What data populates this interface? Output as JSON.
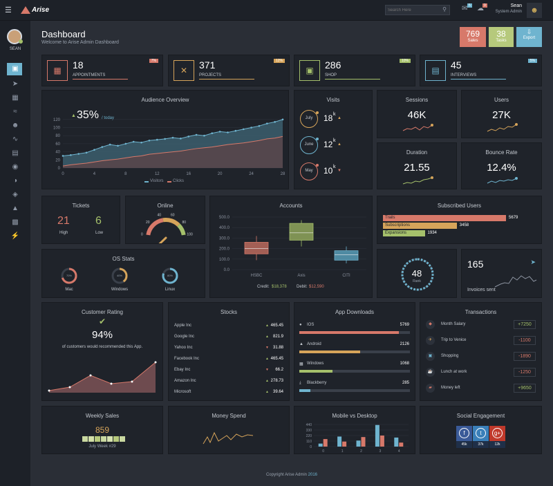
{
  "app": {
    "name": "Arise"
  },
  "topbar": {
    "search_placeholder": "Search Here",
    "msg_count": "5",
    "alert_count": "9",
    "user_name": "Sean",
    "user_role": "System Admin"
  },
  "sidebar": {
    "user_label": "SEAN"
  },
  "header": {
    "title": "Dashboard",
    "subtitle": "Welcome to Arise Admin Dashboard",
    "sales_value": "769",
    "sales_label": "Sales",
    "tasks_value": "38",
    "tasks_label": "Tasks",
    "export_label": "Export"
  },
  "stats": [
    {
      "value": "18",
      "label": "APPOINTMENTS",
      "badge": "7%",
      "color": "#d7796a"
    },
    {
      "value": "371",
      "label": "PROJECTS",
      "badge": "12%",
      "color": "#d6a45a"
    },
    {
      "value": "286",
      "label": "SHOP",
      "badge": "10%",
      "color": "#a5c06b"
    },
    {
      "value": "45",
      "label": "INTERVIEWS",
      "badge": "5%",
      "color": "#6fb4cf"
    }
  ],
  "audience": {
    "title": "Audience Overview",
    "percent": "35%",
    "period": "/ today",
    "legend1": "Visitors",
    "legend2": "Clicks",
    "chart_data": {
      "type": "area",
      "x": [
        0,
        1,
        2,
        3,
        4,
        5,
        6,
        7,
        8,
        9,
        10,
        11,
        12,
        13,
        14,
        15,
        16,
        17,
        18,
        19,
        20,
        21,
        22,
        23,
        24,
        25,
        26,
        27,
        28
      ],
      "xticks": [
        "0",
        "4",
        "8",
        "12",
        "16",
        "20",
        "24",
        "28"
      ],
      "yticks": [
        "0",
        "20",
        "40",
        "60",
        "80",
        "100",
        "120"
      ],
      "ylim": [
        0,
        130
      ],
      "series": [
        {
          "name": "Visitors",
          "values": [
            30,
            32,
            35,
            38,
            45,
            52,
            58,
            55,
            60,
            65,
            63,
            68,
            70,
            72,
            75,
            73,
            78,
            82,
            80,
            86,
            90,
            88,
            92,
            96,
            100,
            104,
            110,
            114,
            120
          ]
        },
        {
          "name": "Clicks",
          "values": [
            5,
            8,
            10,
            12,
            15,
            18,
            20,
            22,
            25,
            28,
            30,
            34,
            36,
            38,
            40,
            42,
            45,
            48,
            50,
            52,
            55,
            58,
            60,
            62,
            65,
            68,
            72,
            74,
            78
          ]
        }
      ]
    }
  },
  "visits": {
    "title": "Visits",
    "rows": [
      {
        "month": "July",
        "value": "18",
        "unit": "k",
        "trend": "up"
      },
      {
        "month": "June",
        "value": "12",
        "unit": "k",
        "trend": "up"
      },
      {
        "month": "May",
        "value": "10",
        "unit": "k",
        "trend": "down"
      }
    ]
  },
  "sessions": {
    "title": "Sessions",
    "value": "46K"
  },
  "users": {
    "title": "Users",
    "value": "27K"
  },
  "duration": {
    "title": "Duration",
    "value": "21.55"
  },
  "bounce": {
    "title": "Bounce Rate",
    "value": "12.4%"
  },
  "tickets": {
    "title": "Tickets",
    "high_value": "21",
    "high_label": "High",
    "low_value": "6",
    "low_label": "Low"
  },
  "online": {
    "title": "Online",
    "ticks": [
      "0",
      "20",
      "40",
      "60",
      "80",
      "100"
    ]
  },
  "accounts": {
    "title": "Accounts",
    "credit_label": "Credit:",
    "credit_value": "$18,378",
    "debit_label": "Debit:",
    "debit_value": "$12,590",
    "chart_data": {
      "type": "boxplot",
      "categories": [
        "HSBC",
        "Axis",
        "CITI"
      ],
      "yticks": [
        "0.0",
        "100.0",
        "200.0",
        "300.0",
        "400.0",
        "500.0"
      ],
      "ylim": [
        0,
        500
      ],
      "boxes": [
        {
          "min": 90,
          "q1": 150,
          "median": 200,
          "q3": 260,
          "max": 320
        },
        {
          "min": 220,
          "q1": 280,
          "median": 350,
          "q3": 440,
          "max": 470
        },
        {
          "min": 60,
          "q1": 90,
          "median": 140,
          "q3": 180,
          "max": 220
        }
      ]
    }
  },
  "subscribed": {
    "title": "Subscribed Users",
    "rows": [
      {
        "label": "Trails",
        "value": "5679",
        "pct": 1.0,
        "color": "#d7796a"
      },
      {
        "label": "Subscriptions",
        "value": "3458",
        "pct": 0.6,
        "color": "#d6a45a"
      },
      {
        "label": "Expansions",
        "value": "1934",
        "pct": 0.34,
        "color": "#a5c06b"
      }
    ]
  },
  "os": {
    "title": "OS Stats",
    "items": [
      {
        "label": "Mac",
        "pct": "70%",
        "color": "#d7796a",
        "value": 0.7
      },
      {
        "label": "Windows",
        "pct": "40%",
        "color": "#d6a45a",
        "value": 0.4
      },
      {
        "label": "Linux",
        "pct": "80%",
        "color": "#6fb4cf",
        "value": 0.8
      }
    ]
  },
  "rank": {
    "value": "48",
    "label": "Rank"
  },
  "invoices": {
    "value": "165",
    "label": "Invoices sent"
  },
  "rating": {
    "title": "Customer Rating",
    "percent": "94%",
    "text": "of customers would recommended this App."
  },
  "stocks": {
    "title": "Stocks",
    "rows": [
      {
        "name": "Apple Inc",
        "value": "465.45",
        "trend": "up"
      },
      {
        "name": "Google Inc",
        "value": "821.9",
        "trend": "up"
      },
      {
        "name": "Yahoo Inc",
        "value": "31.88",
        "trend": "down"
      },
      {
        "name": "Facebook Inc",
        "value": "465.45",
        "trend": "up"
      },
      {
        "name": "Ebay Inc",
        "value": "66.2",
        "trend": "down"
      },
      {
        "name": "Amazon Inc",
        "value": "278.73",
        "trend": "up"
      },
      {
        "name": "Microsoft",
        "value": "39.64",
        "trend": "up"
      }
    ]
  },
  "downloads": {
    "title": "App Downloads",
    "rows": [
      {
        "name": "IOS",
        "value": "5769",
        "pct": 0.9,
        "color": "#d7796a",
        "icon": "apple-icon"
      },
      {
        "name": "Android",
        "value": "2126",
        "pct": 0.55,
        "color": "#d6a45a",
        "icon": "android-icon"
      },
      {
        "name": "Windows",
        "value": "1068",
        "pct": 0.3,
        "color": "#a5c06b",
        "icon": "windows-icon"
      },
      {
        "name": "Blackberry",
        "value": "285",
        "pct": 0.1,
        "color": "#6fb4cf",
        "icon": "blackberry-icon"
      }
    ]
  },
  "transactions": {
    "title": "Transactions",
    "rows": [
      {
        "label": "Month Salary",
        "value": "+7250",
        "type": "pos",
        "color": "#d7796a"
      },
      {
        "label": "Trip to Venice",
        "value": "-1100",
        "type": "neg",
        "color": "#d6a45a"
      },
      {
        "label": "Shopping",
        "value": "-1890",
        "type": "neg",
        "color": "#6fb4cf"
      },
      {
        "label": "Lunch at work",
        "value": "-1250",
        "type": "neg",
        "color": "#d6a45a"
      },
      {
        "label": "Money left",
        "value": "+9650",
        "type": "pos",
        "color": "#d7796a"
      }
    ]
  },
  "weekly": {
    "title": "Weekly Sales",
    "value": "859",
    "caption": "July Week #29"
  },
  "money": {
    "title": "Money Spend"
  },
  "mobile": {
    "title": "Mobile vs Desktop",
    "chart_data": {
      "type": "bar",
      "categories": [
        "0",
        "1",
        "2",
        "3",
        "4"
      ],
      "yticks": [
        "0",
        "110",
        "220",
        "330",
        "440"
      ],
      "ylim": [
        0,
        440
      ],
      "series": [
        {
          "name": "Mobile",
          "values": [
            60,
            200,
            120,
            430,
            180
          ]
        },
        {
          "name": "Desktop",
          "values": [
            150,
            100,
            190,
            220,
            80
          ]
        }
      ]
    }
  },
  "social": {
    "title": "Social Engagement",
    "items": [
      {
        "label": "f",
        "count": "45k",
        "color": "#3a5a98"
      },
      {
        "label": "t",
        "count": "37k",
        "color": "#3a7fb8"
      },
      {
        "label": "g+",
        "count": "12k",
        "color": "#c0392b"
      }
    ]
  },
  "footer": {
    "text": "Copyright Arise Admin",
    "year": "2016"
  }
}
